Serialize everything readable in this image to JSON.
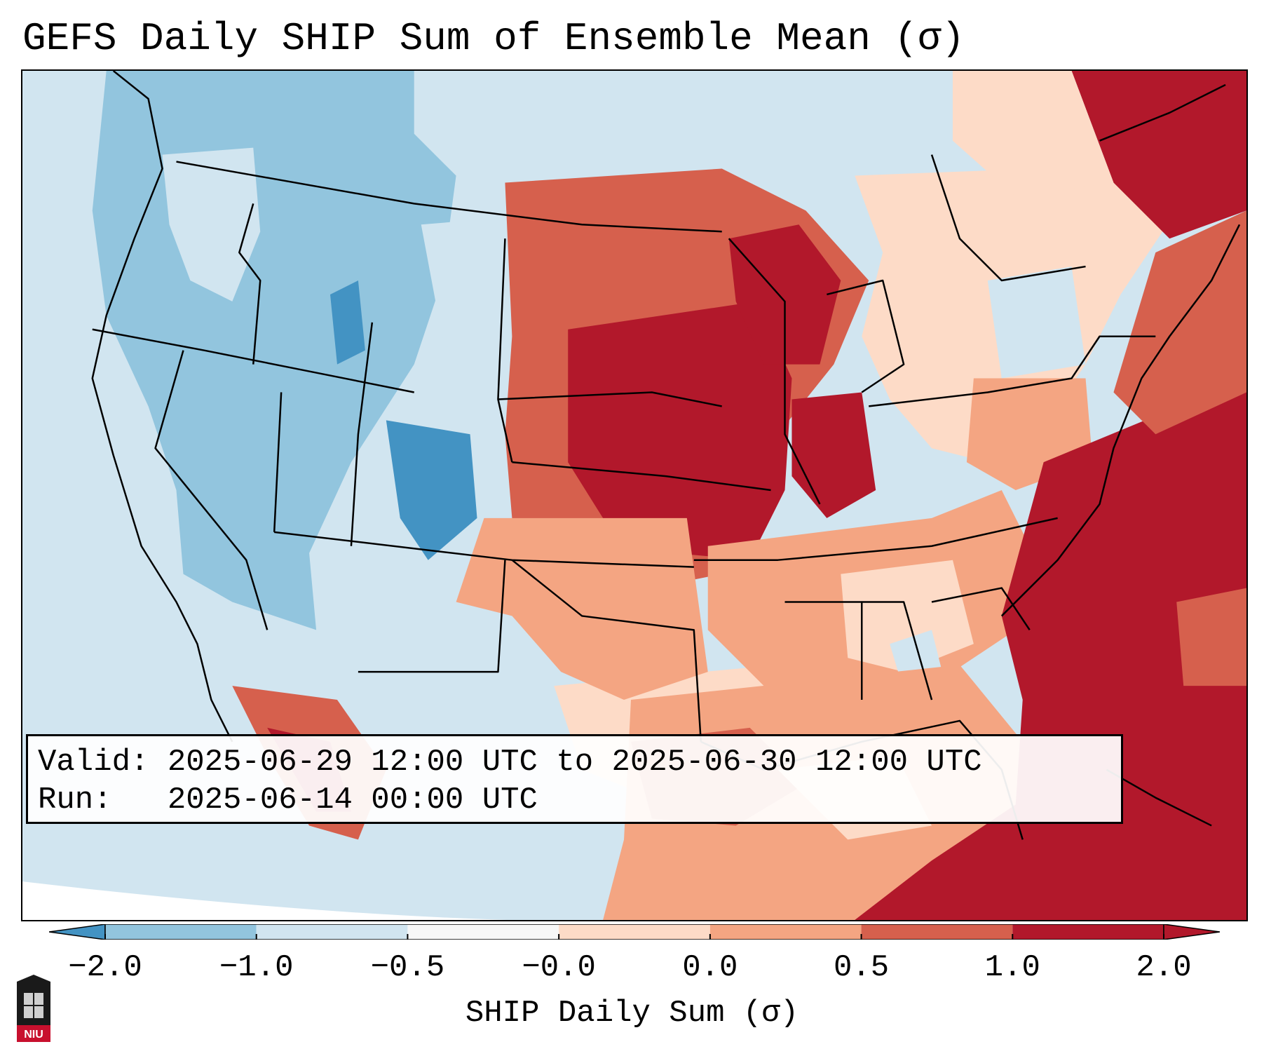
{
  "title": "GEFS Daily SHIP Sum of Ensemble Mean (σ)",
  "info": {
    "valid_label": "Valid:",
    "valid_value": "2025-06-29 12:00 UTC to 2025-06-30 12:00 UTC",
    "run_label": "Run:",
    "run_value": "2025-06-14 00:00 UTC"
  },
  "colorbar": {
    "label": "SHIP Daily Sum (σ)",
    "ticks": [
      "−2.0",
      "−1.0",
      "−0.5",
      "−0.0",
      "0.0",
      "0.5",
      "1.0",
      "2.0"
    ],
    "colors": [
      "#4393c3",
      "#92c5de",
      "#d1e5f0",
      "#f7f7f7",
      "#fddbc7",
      "#f4a582",
      "#d6604d",
      "#b2182b"
    ],
    "extend": "both"
  },
  "logo_text": "NIU"
}
